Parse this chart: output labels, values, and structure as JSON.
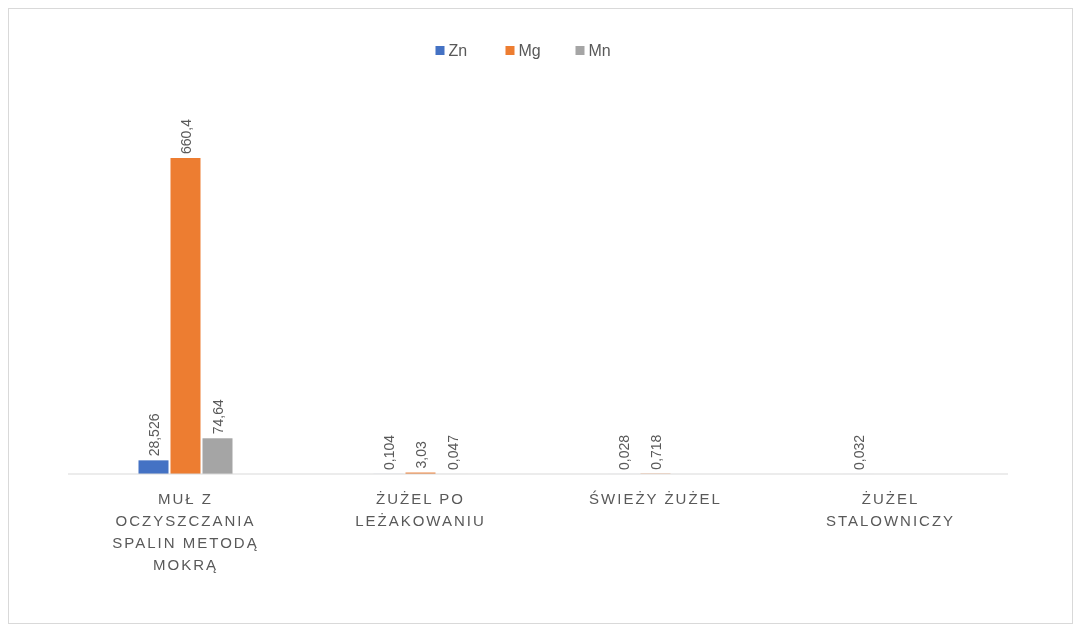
{
  "chart_data": {
    "type": "bar",
    "categories": [
      "MUŁ Z OCZYSZCZANIA SPALIN METODĄ MOKRĄ",
      "ŻUŻEL PO LEŻAKOWANIU",
      "ŚWIEŻY ŻUŻEL",
      "ŻUŻEL STALOWNICZY"
    ],
    "series": [
      {
        "name": "Zn",
        "color": "#4472c4",
        "values": [
          28.526,
          0.104,
          0.028,
          0.032
        ],
        "value_labels": [
          "28,526",
          "0,104",
          "0,028",
          "0,032"
        ]
      },
      {
        "name": "Mg",
        "color": "#ed7d31",
        "values": [
          660.4,
          3.03,
          0.718,
          null
        ],
        "value_labels": [
          "660,4",
          "3,03",
          "0,718",
          null
        ]
      },
      {
        "name": "Mn",
        "color": "#a5a5a5",
        "values": [
          74.64,
          0.047,
          null,
          null
        ],
        "value_labels": [
          "74,64",
          "0,047",
          null,
          null
        ]
      }
    ],
    "legend": "top"
  }
}
